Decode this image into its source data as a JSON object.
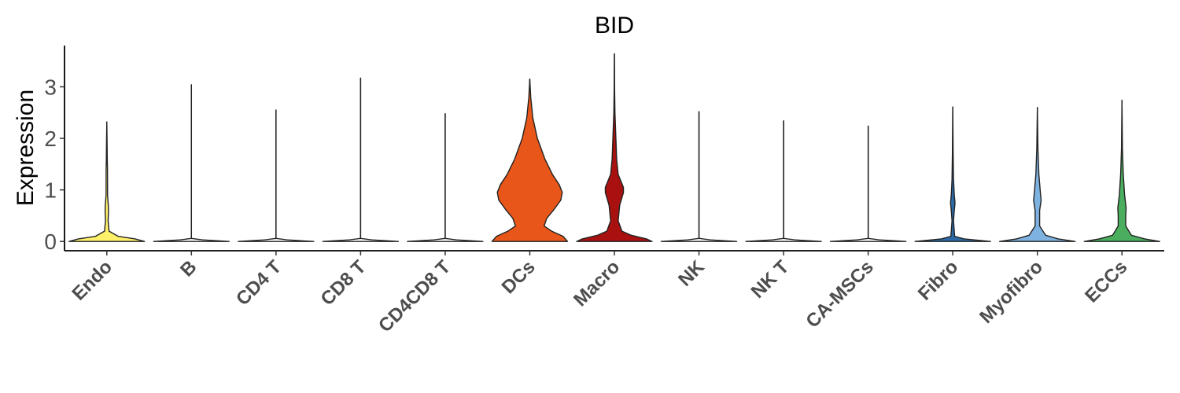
{
  "chart_data": {
    "type": "violin",
    "title": "BID",
    "xlabel": "",
    "ylabel": "Expression",
    "ylim": [
      -0.18,
      3.8
    ],
    "yticks": [
      "0",
      "1",
      "2",
      "3"
    ],
    "grid": false,
    "legend": "none",
    "categories": [
      "Endo",
      "B",
      "CD4 T",
      "CD8 T",
      "CD4CD8 T",
      "DCs",
      "Macro",
      "NK",
      "NK T",
      "CA-MSCs",
      "Fibro",
      "Myofibro",
      "ECCs"
    ],
    "colors": [
      "#FFF06A",
      "#FFFFFF",
      "#FFFFFF",
      "#FFFFFF",
      "#FFFFFF",
      "#E85719",
      "#A8110F",
      "#FFFFFF",
      "#FFFFFF",
      "#FFFFFF",
      "#2B6AA6",
      "#7EB2E0",
      "#4AAE5E"
    ],
    "max_expression": [
      2.32,
      3.04,
      2.55,
      3.17,
      2.48,
      3.15,
      3.64,
      2.52,
      2.34,
      2.24,
      2.61,
      2.6,
      2.74
    ],
    "density_profiles": [
      [
        [
          0,
          1.0
        ],
        [
          0.05,
          0.75
        ],
        [
          0.1,
          0.3
        ],
        [
          0.2,
          0.06
        ],
        [
          0.4,
          0.035
        ],
        [
          0.6,
          0.045
        ],
        [
          0.7,
          0.04
        ],
        [
          0.9,
          0.02
        ],
        [
          1.4,
          0.018
        ],
        [
          1.6,
          0.012
        ],
        [
          2.0,
          0.006
        ],
        [
          2.32,
          0.0
        ]
      ],
      [
        [
          0,
          1.0
        ],
        [
          0.03,
          0.3
        ],
        [
          0.06,
          0.0
        ],
        [
          3.04,
          0.0
        ]
      ],
      [
        [
          0,
          1.0
        ],
        [
          0.03,
          0.3
        ],
        [
          0.06,
          0.0
        ],
        [
          2.55,
          0.0
        ]
      ],
      [
        [
          0,
          1.0
        ],
        [
          0.03,
          0.3
        ],
        [
          0.06,
          0.0
        ],
        [
          3.17,
          0.0
        ]
      ],
      [
        [
          0,
          1.0
        ],
        [
          0.03,
          0.3
        ],
        [
          0.06,
          0.0
        ],
        [
          2.48,
          0.0
        ]
      ],
      [
        [
          0,
          1.0
        ],
        [
          0.1,
          0.88
        ],
        [
          0.2,
          0.58
        ],
        [
          0.3,
          0.38
        ],
        [
          0.45,
          0.45
        ],
        [
          0.6,
          0.62
        ],
        [
          0.8,
          0.82
        ],
        [
          0.95,
          0.86
        ],
        [
          1.1,
          0.78
        ],
        [
          1.3,
          0.6
        ],
        [
          1.6,
          0.4
        ],
        [
          2.0,
          0.2
        ],
        [
          2.4,
          0.08
        ],
        [
          2.8,
          0.025
        ],
        [
          3.15,
          0.0
        ]
      ],
      [
        [
          0,
          1.0
        ],
        [
          0.05,
          0.85
        ],
        [
          0.12,
          0.45
        ],
        [
          0.2,
          0.2
        ],
        [
          0.4,
          0.1
        ],
        [
          0.7,
          0.14
        ],
        [
          0.95,
          0.24
        ],
        [
          1.05,
          0.24
        ],
        [
          1.3,
          0.1
        ],
        [
          1.6,
          0.06
        ],
        [
          2.0,
          0.04
        ],
        [
          2.5,
          0.015
        ],
        [
          3.0,
          0.005
        ],
        [
          3.64,
          0.0
        ]
      ],
      [
        [
          0,
          1.0
        ],
        [
          0.03,
          0.3
        ],
        [
          0.06,
          0.0
        ],
        [
          2.52,
          0.0
        ]
      ],
      [
        [
          0,
          1.0
        ],
        [
          0.03,
          0.3
        ],
        [
          0.06,
          0.0
        ],
        [
          2.34,
          0.0
        ]
      ],
      [
        [
          0,
          1.0
        ],
        [
          0.03,
          0.3
        ],
        [
          0.06,
          0.0
        ],
        [
          2.24,
          0.0
        ]
      ],
      [
        [
          0,
          1.0
        ],
        [
          0.05,
          0.3
        ],
        [
          0.1,
          0.05
        ],
        [
          0.4,
          0.02
        ],
        [
          0.6,
          0.04
        ],
        [
          0.75,
          0.06
        ],
        [
          0.9,
          0.04
        ],
        [
          1.2,
          0.02
        ],
        [
          1.7,
          0.01
        ],
        [
          2.61,
          0.0
        ]
      ],
      [
        [
          0,
          1.0
        ],
        [
          0.05,
          0.55
        ],
        [
          0.12,
          0.22
        ],
        [
          0.3,
          0.06
        ],
        [
          0.6,
          0.06
        ],
        [
          0.8,
          0.1
        ],
        [
          0.95,
          0.08
        ],
        [
          1.3,
          0.04
        ],
        [
          1.8,
          0.015
        ],
        [
          2.6,
          0.0
        ]
      ],
      [
        [
          0,
          1.0
        ],
        [
          0.05,
          0.6
        ],
        [
          0.12,
          0.25
        ],
        [
          0.3,
          0.1
        ],
        [
          0.5,
          0.1
        ],
        [
          0.65,
          0.11
        ],
        [
          0.9,
          0.07
        ],
        [
          1.3,
          0.035
        ],
        [
          1.8,
          0.012
        ],
        [
          2.74,
          0.0
        ]
      ]
    ]
  }
}
